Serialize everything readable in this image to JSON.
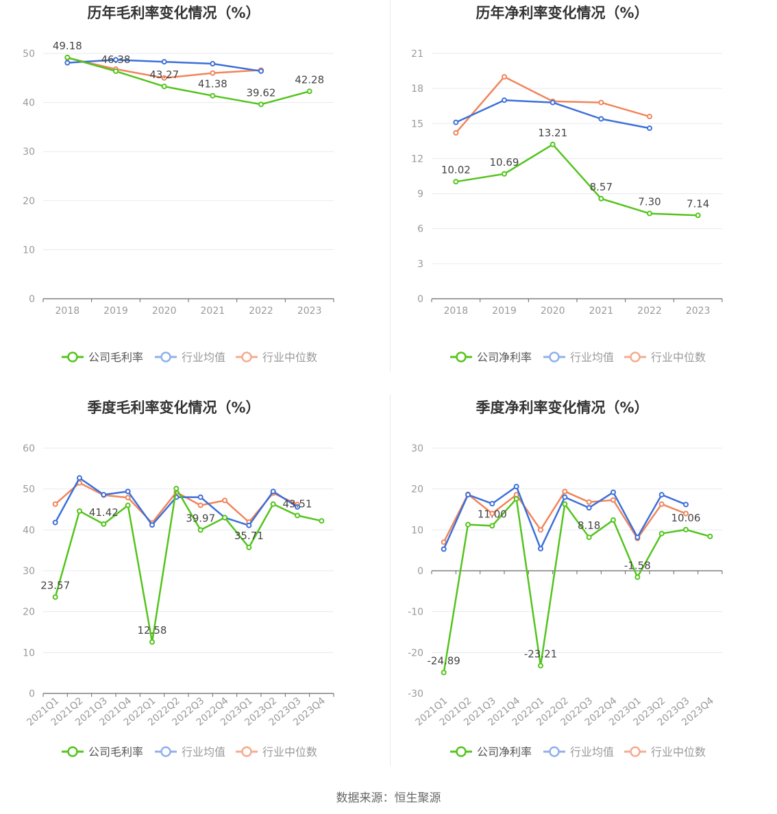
{
  "source": "数据来源：恒生聚源",
  "legend_labels": {
    "industry_avg": "行业均值",
    "industry_median": "行业中位数"
  },
  "colors": {
    "company": "#52c41a",
    "industry_avg": "#3b6fd8",
    "industry_median": "#f0845a",
    "legend_avg": "#8fb0ea",
    "legend_median": "#f5ab8e",
    "grid": "#e6e9f0",
    "axis": "#666666",
    "tick_label": "#999999"
  },
  "chart_data": [
    {
      "type": "line",
      "title": "历年毛利率变化情况（%）",
      "categories": [
        "2018",
        "2019",
        "2020",
        "2021",
        "2022",
        "2023"
      ],
      "ylim": [
        0,
        50
      ],
      "yticks": [
        0,
        10,
        20,
        30,
        40,
        50
      ],
      "grid": true,
      "legend_position": "bottom",
      "rotate_x_labels": false,
      "series": [
        {
          "name": "公司毛利率",
          "key": "company",
          "values": [
            49.18,
            46.38,
            43.27,
            41.38,
            39.62,
            42.28
          ]
        },
        {
          "name": "行业均值",
          "key": "industry_avg",
          "values": [
            48.1,
            48.7,
            48.3,
            47.9,
            46.4,
            null
          ]
        },
        {
          "name": "行业中位数",
          "key": "industry_median",
          "values": [
            49.1,
            46.8,
            45.0,
            46.0,
            46.6,
            null
          ]
        }
      ],
      "data_labels": [
        "49.18",
        "46.38",
        "43.27",
        "41.38",
        "39.62",
        "42.28"
      ]
    },
    {
      "type": "line",
      "title": "历年净利率变化情况（%）",
      "categories": [
        "2018",
        "2019",
        "2020",
        "2021",
        "2022",
        "2023"
      ],
      "ylim": [
        0,
        21
      ],
      "yticks": [
        0,
        3,
        6,
        9,
        12,
        15,
        18,
        21
      ],
      "grid": true,
      "legend_position": "bottom",
      "rotate_x_labels": false,
      "series": [
        {
          "name": "公司净利率",
          "key": "company",
          "values": [
            10.02,
            10.69,
            13.21,
            8.57,
            7.3,
            7.14
          ]
        },
        {
          "name": "行业均值",
          "key": "industry_avg",
          "values": [
            15.1,
            17.0,
            16.8,
            15.4,
            14.6,
            null
          ]
        },
        {
          "name": "行业中位数",
          "key": "industry_median",
          "values": [
            14.2,
            19.0,
            16.9,
            16.8,
            15.6,
            null
          ]
        }
      ],
      "data_labels": [
        "10.02",
        "10.69",
        "13.21",
        "8.57",
        "7.30",
        "7.14"
      ]
    },
    {
      "type": "line",
      "title": "季度毛利率变化情况（%）",
      "categories": [
        "2021Q1",
        "2021Q2",
        "2021Q3",
        "2021Q4",
        "2022Q1",
        "2022Q2",
        "2022Q3",
        "2022Q4",
        "2023Q1",
        "2023Q2",
        "2023Q3",
        "2023Q4"
      ],
      "ylim": [
        0,
        60
      ],
      "yticks": [
        0,
        10,
        20,
        30,
        40,
        50,
        60
      ],
      "grid": true,
      "legend_position": "bottom",
      "rotate_x_labels": true,
      "series": [
        {
          "name": "公司毛利率",
          "key": "company",
          "values": [
            23.57,
            44.6,
            41.42,
            46.0,
            12.58,
            50.1,
            39.97,
            43.0,
            35.71,
            46.3,
            43.51,
            42.2
          ]
        },
        {
          "name": "行业均值",
          "key": "industry_avg",
          "values": [
            41.8,
            52.7,
            48.6,
            49.4,
            41.2,
            48.0,
            48.0,
            43.0,
            41.1,
            49.4,
            45.6,
            null
          ]
        },
        {
          "name": "行业中位数",
          "key": "industry_median",
          "values": [
            46.3,
            51.5,
            48.5,
            47.9,
            41.7,
            49.2,
            46.0,
            47.2,
            41.9,
            49.0,
            46.2,
            null
          ]
        }
      ],
      "data_labels": [
        "23.57",
        "",
        "41.42",
        "",
        "12.58",
        "",
        "39.97",
        "",
        "35.71",
        "",
        "43.51",
        ""
      ]
    },
    {
      "type": "line",
      "title": "季度净利率变化情况（%）",
      "categories": [
        "2021Q1",
        "2021Q2",
        "2021Q3",
        "2021Q4",
        "2022Q1",
        "2022Q2",
        "2022Q3",
        "2022Q4",
        "2023Q1",
        "2023Q2",
        "2023Q3",
        "2023Q4"
      ],
      "ylim": [
        -30,
        30
      ],
      "yticks": [
        -30,
        -20,
        -10,
        0,
        10,
        20,
        30
      ],
      "grid": true,
      "legend_position": "bottom",
      "rotate_x_labels": true,
      "series": [
        {
          "name": "公司净利率",
          "key": "company",
          "values": [
            -24.89,
            11.3,
            11.0,
            17.6,
            -23.21,
            16.3,
            8.18,
            12.4,
            -1.58,
            9.1,
            10.06,
            8.4
          ]
        },
        {
          "name": "行业均值",
          "key": "industry_avg",
          "values": [
            5.3,
            18.6,
            16.4,
            20.6,
            5.4,
            18.0,
            15.4,
            19.2,
            8.2,
            18.6,
            16.2,
            null
          ]
        },
        {
          "name": "行业中位数",
          "key": "industry_median",
          "values": [
            7.0,
            18.7,
            14.0,
            18.6,
            10.0,
            19.4,
            16.8,
            17.3,
            7.9,
            16.3,
            14.0,
            null
          ]
        }
      ],
      "data_labels": [
        "-24.89",
        "",
        "11.00",
        "",
        "-23.21",
        "",
        "8.18",
        "",
        "-1.58",
        "",
        "10.06",
        ""
      ]
    }
  ]
}
